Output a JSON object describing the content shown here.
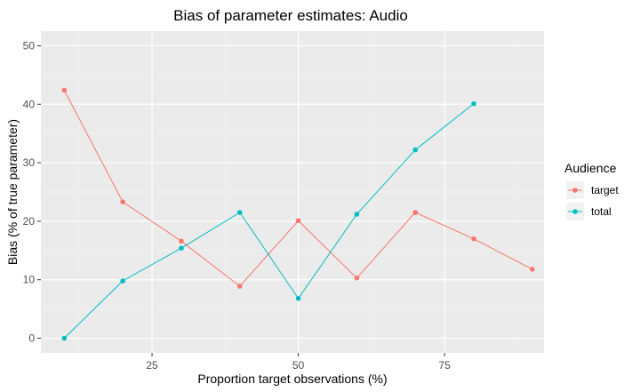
{
  "chart_data": {
    "type": "line",
    "title": "Bias of parameter estimates: Audio",
    "xlabel": "Proportion target observations (%)",
    "ylabel": "Bias (% of true parameter)",
    "xlim": [
      6,
      92
    ],
    "ylim": [
      -2.5,
      52.5
    ],
    "x_ticks": [
      25,
      50,
      75
    ],
    "y_ticks": [
      0,
      10,
      20,
      30,
      40,
      50
    ],
    "x_tick_labels": [
      "25",
      "50",
      "75"
    ],
    "y_tick_labels": [
      "0",
      "10",
      "20",
      "30",
      "40",
      "50"
    ],
    "grid": true,
    "legend": {
      "title": "Audience",
      "position": "right"
    },
    "series": [
      {
        "name": "target",
        "color": "#F8766D",
        "x": [
          10,
          20,
          30,
          40,
          50,
          60,
          70,
          80,
          90
        ],
        "y": [
          42.4,
          23.3,
          16.6,
          8.9,
          20.1,
          10.3,
          21.5,
          17.0,
          11.8
        ]
      },
      {
        "name": "total",
        "color": "#00BFC4",
        "x": [
          10,
          20,
          30,
          40,
          50,
          60,
          70,
          80
        ],
        "y": [
          0.0,
          9.8,
          15.4,
          21.5,
          6.8,
          21.2,
          32.2,
          40.1
        ]
      }
    ]
  }
}
